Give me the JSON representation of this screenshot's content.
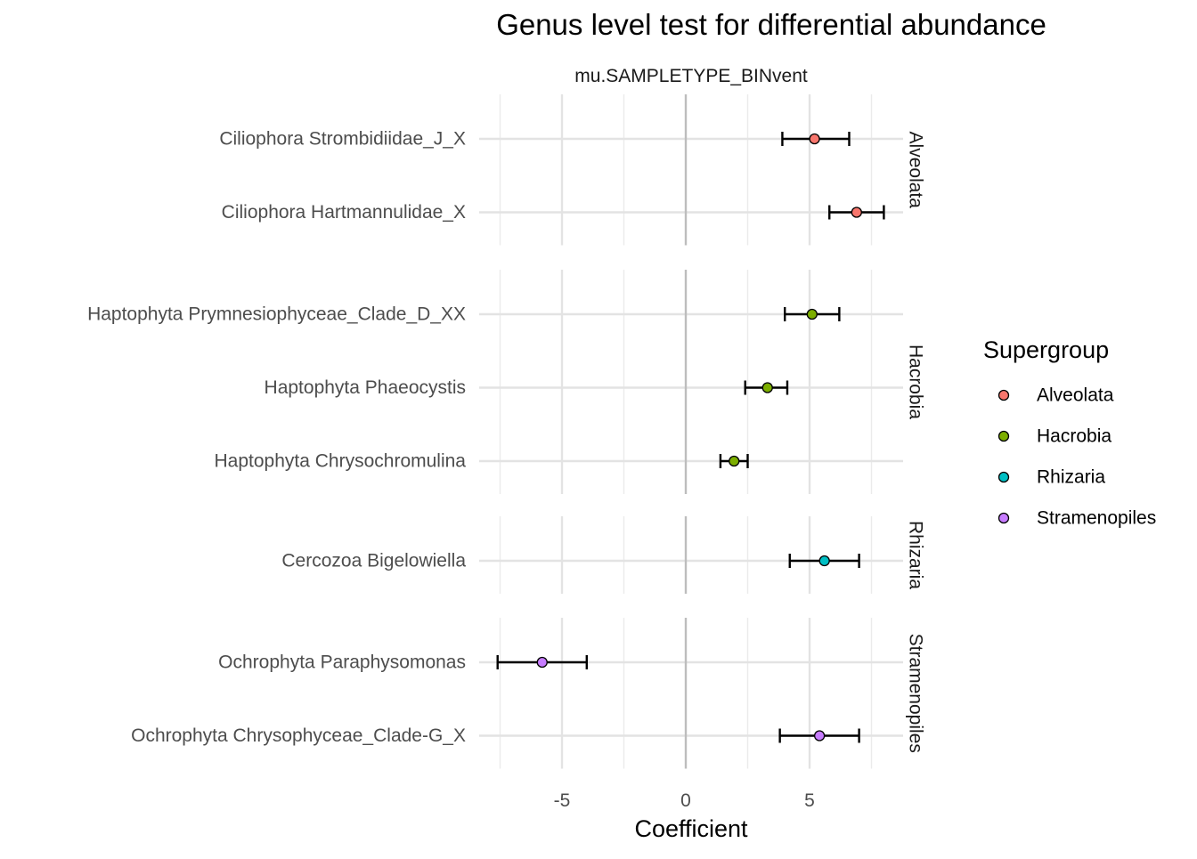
{
  "chart_data": {
    "type": "scatter",
    "title": "Genus level test for differential abundance",
    "facet_label": "mu.SAMPLETYPE_BINvent",
    "xlabel": "Coefficient",
    "ylabel": "",
    "xlim": [
      -8.7,
      8.8
    ],
    "xticks": [
      -5,
      0,
      5
    ],
    "grid": true,
    "reference_line_x": 0,
    "legend": {
      "title": "Supergroup",
      "position": "right",
      "entries": [
        {
          "label": "Alveolata",
          "color": "#F8766D"
        },
        {
          "label": "Hacrobia",
          "color": "#7CAE00"
        },
        {
          "label": "Rhizaria",
          "color": "#00BFC4"
        },
        {
          "label": "Stramenopiles",
          "color": "#C77CFF"
        }
      ]
    },
    "panels": [
      {
        "name": "Alveolata",
        "color": "#F8766D",
        "points": [
          {
            "label": "Ciliophora Strombidiidae_J_X",
            "value": 5.2,
            "lower": 3.9,
            "upper": 6.6
          },
          {
            "label": "Ciliophora Hartmannulidae_X",
            "value": 6.9,
            "lower": 5.8,
            "upper": 8.0
          }
        ]
      },
      {
        "name": "Hacrobia",
        "color": "#7CAE00",
        "points": [
          {
            "label": "Haptophyta Prymnesiophyceae_Clade_D_XX",
            "value": 5.1,
            "lower": 4.0,
            "upper": 6.2
          },
          {
            "label": "Haptophyta Phaeocystis",
            "value": 3.3,
            "lower": 2.4,
            "upper": 4.1
          },
          {
            "label": "Haptophyta Chrysochromulina",
            "value": 1.95,
            "lower": 1.4,
            "upper": 2.5
          }
        ]
      },
      {
        "name": "Rhizaria",
        "color": "#00BFC4",
        "points": [
          {
            "label": "Cercozoa Bigelowiella",
            "value": 5.6,
            "lower": 4.2,
            "upper": 7.0
          }
        ]
      },
      {
        "name": "Stramenopiles",
        "color": "#C77CFF",
        "points": [
          {
            "label": "Ochrophyta Paraphysomonas",
            "value": -5.8,
            "lower": -7.6,
            "upper": -4.0
          },
          {
            "label": "Ochrophyta Chrysophyceae_Clade-G_X",
            "value": 5.4,
            "lower": 3.8,
            "upper": 7.0
          }
        ]
      }
    ]
  }
}
